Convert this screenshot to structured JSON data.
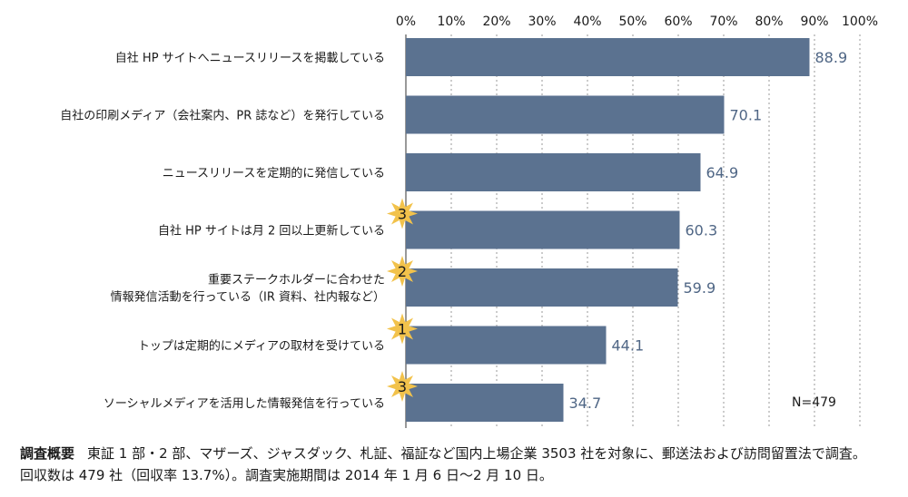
{
  "chart_data": {
    "type": "bar",
    "orientation": "horizontal",
    "categories": [
      "自社 HP サイトへニュースリリースを掲載している",
      "自社の印刷メディア（会社案内、PR 誌など）を発行している",
      "ニュースリリースを定期的に発信している",
      "自社 HP サイトは月 2 回以上更新している",
      [
        "重要ステークホルダーに合わせた",
        "情報発信活動を行っている（IR 資料、社内報など）"
      ],
      "トップは定期的にメディアの取材を受けている",
      "ソーシャルメディアを活用した情報発信を行っている"
    ],
    "values": [
      88.9,
      70.1,
      64.9,
      60.3,
      59.9,
      44.1,
      34.7
    ],
    "value_labels": [
      "88.9",
      "70.1",
      "64.9",
      "60.3",
      "59.9",
      "44.1",
      "34.7"
    ],
    "badges": [
      "",
      "",
      "",
      "3",
      "2",
      "1",
      "3"
    ],
    "xlim": [
      0,
      100
    ],
    "xticks": [
      "0%",
      "10%",
      "20%",
      "30%",
      "40%",
      "50%",
      "60%",
      "70%",
      "80%",
      "90%",
      "100%"
    ],
    "grid": true,
    "annotation": "N=479",
    "colors": {
      "bar": "#5b7290",
      "value_text": "#4f6685",
      "badge": "#f2c24b",
      "grid": "#9a9a9a"
    }
  },
  "footer": {
    "label": "調査概要",
    "line1": "東証 1 部・2 部、マザーズ、ジャスダック、札証、福証など国内上場企業 3503 社を対象に、郵送法および訪問留置法で調査。",
    "line2": "回収数は 479 社（回収率 13.7%）。調査実施期間は 2014 年 1 月 6 日～2 月 10 日。"
  }
}
